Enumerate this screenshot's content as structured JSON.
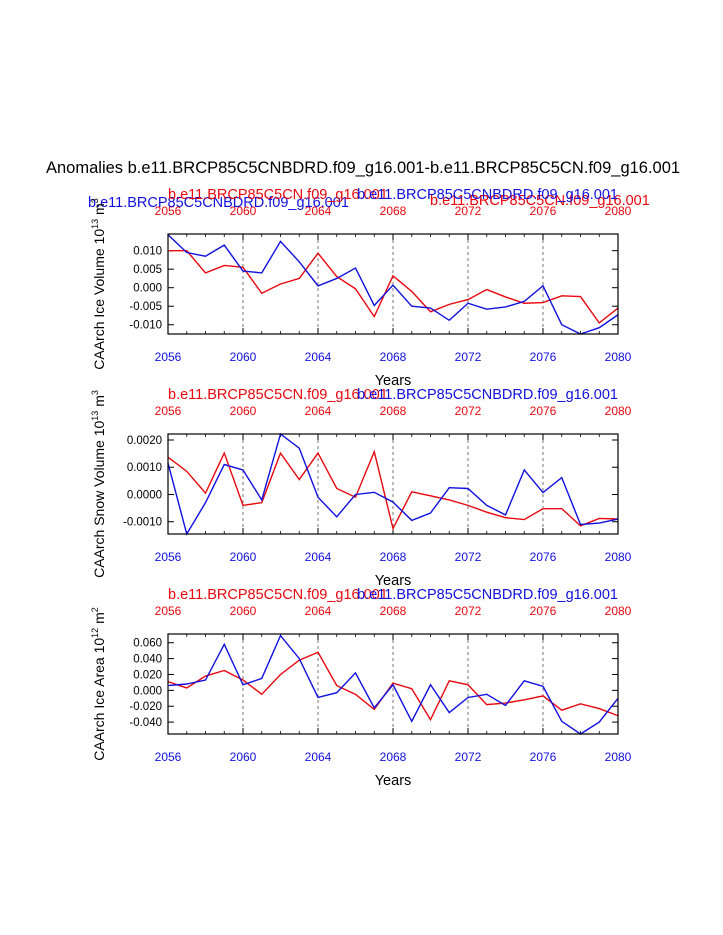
{
  "figure": {
    "title": "Anomalies b.e11.BRCP85C5CNBDRD.f09_g16.001-b.e11.BRCP85C5CN.f09_g16.001"
  },
  "colors": {
    "series_a": "#e8070e",
    "series_b": "#1010e0",
    "axis": "#000000"
  },
  "chart_data": [
    {
      "type": "line",
      "title_left": "b.e11.BRCP85C5CNBDRD.f09_g16.001",
      "title_center": "b.e11.BRCP85C5CN.f09_g16.001-b.e11.BRCP85C5CNBDRD.f09_g16.001",
      "title_right": "b.e11.BRCP85C5CN.f09_g16.001",
      "xlabel": "Years",
      "ylabel": "CAArch Ice Volume 10^13 m^3",
      "ylim": [
        -0.0125,
        0.0145
      ],
      "yticks": [
        -0.01,
        -0.005,
        0.0,
        0.005,
        0.01
      ],
      "ytick_labels": [
        "-0.010",
        "-0.005",
        "0.000",
        "0.005",
        "0.010"
      ],
      "xlim": [
        2056,
        2080
      ],
      "xticks": [
        2056,
        2060,
        2064,
        2068,
        2072,
        2076,
        2080
      ],
      "xtick_labels": [
        "2056",
        "2060",
        "2064",
        "2068",
        "2072",
        "2076",
        "2080"
      ],
      "grid_x": [
        2060,
        2064,
        2068,
        2072,
        2076
      ],
      "x": [
        2056,
        2057,
        2058,
        2059,
        2060,
        2061,
        2062,
        2063,
        2064,
        2065,
        2066,
        2067,
        2068,
        2069,
        2070,
        2071,
        2072,
        2073,
        2074,
        2075,
        2076,
        2077,
        2078,
        2079,
        2080
      ],
      "series": [
        {
          "name": "b.e11.BRCP85C5CN.f09_g16.001",
          "color_key": "series_a",
          "values": [
            0.01,
            0.01,
            0.004,
            0.006,
            0.0055,
            -0.0015,
            0.001,
            0.0025,
            0.0093,
            0.003,
            -0.0003,
            -0.0078,
            0.0032,
            -0.001,
            -0.0065,
            -0.0045,
            -0.0032,
            -0.0005,
            -0.0025,
            -0.0042,
            -0.004,
            -0.0022,
            -0.0024,
            -0.0095,
            -0.0055
          ]
        },
        {
          "name": "b.e11.BRCP85C5CNBDRD.f09_g16.001",
          "color_key": "series_b",
          "values": [
            0.0143,
            0.0095,
            0.0085,
            0.0115,
            0.0045,
            0.004,
            0.0125,
            0.007,
            0.0005,
            0.0025,
            0.0053,
            -0.0048,
            0.0007,
            -0.005,
            -0.0055,
            -0.0088,
            -0.0042,
            -0.0058,
            -0.0052,
            -0.0037,
            0.0005,
            -0.01,
            -0.0125,
            -0.0108,
            -0.0073
          ]
        }
      ]
    },
    {
      "type": "line",
      "title_left": "",
      "title_center": "b.e11.BRCP85C5CN.f09_g16.001-b.e11.BRCP85C5CNBDRD.f09_g16.001",
      "title_right": "",
      "xlabel": "Years",
      "ylabel": "CAArch Snow Volume 10^13 m^3",
      "ylim": [
        -0.00145,
        0.00222
      ],
      "yticks": [
        -0.001,
        0.0,
        0.001,
        0.002
      ],
      "ytick_labels": [
        "-0.0010",
        "0.0000",
        "0.0010",
        "0.0020"
      ],
      "xlim": [
        2056,
        2080
      ],
      "xticks": [
        2056,
        2060,
        2064,
        2068,
        2072,
        2076,
        2080
      ],
      "xtick_labels": [
        "2056",
        "2060",
        "2064",
        "2068",
        "2072",
        "2076",
        "2080"
      ],
      "grid_x": [
        2060,
        2064,
        2068,
        2072,
        2076
      ],
      "x": [
        2056,
        2057,
        2058,
        2059,
        2060,
        2061,
        2062,
        2063,
        2064,
        2065,
        2066,
        2067,
        2068,
        2069,
        2070,
        2071,
        2072,
        2073,
        2074,
        2075,
        2076,
        2077,
        2078,
        2079,
        2080
      ],
      "series": [
        {
          "name": "b.e11.BRCP85C5CN.f09_g16.001",
          "color_key": "series_a",
          "values": [
            0.00137,
            0.00085,
            5e-05,
            0.00152,
            -0.0004,
            -0.0003,
            0.00152,
            0.00055,
            0.00152,
            0.00022,
            -0.0001,
            0.00157,
            -0.00125,
            0.0001,
            -5e-05,
            -0.0002,
            -0.0004,
            -0.00065,
            -0.00085,
            -0.00092,
            -0.00052,
            -0.00052,
            -0.00115,
            -0.00088,
            -0.0009
          ]
        },
        {
          "name": "b.e11.BRCP85C5CNBDRD.f09_g16.001",
          "color_key": "series_b",
          "values": [
            0.00115,
            -0.00145,
            -0.0003,
            0.0011,
            0.0009,
            -0.0002,
            0.00222,
            0.0017,
            -0.0001,
            -0.00082,
            0.0,
            8e-05,
            -0.00028,
            -0.00095,
            -0.00068,
            0.00025,
            0.00022,
            -0.0004,
            -0.00075,
            0.0009,
            7e-05,
            0.00062,
            -0.0011,
            -0.00105,
            -0.0009
          ]
        }
      ]
    },
    {
      "type": "line",
      "title_left": "",
      "title_center": "b.e11.BRCP85C5CN.f09_g16.001-b.e11.BRCP85C5CNBDRD.f09_g16.001",
      "title_right": "",
      "xlabel": "Years",
      "ylabel": "CAArch Ice Area 10^12 m^2",
      "ylim": [
        -0.055,
        0.071
      ],
      "yticks": [
        -0.04,
        -0.02,
        0.0,
        0.02,
        0.04,
        0.06
      ],
      "ytick_labels": [
        "-0.040",
        "-0.020",
        "0.000",
        "0.020",
        "0.040",
        "0.060"
      ],
      "xlim": [
        2056,
        2080
      ],
      "xticks": [
        2056,
        2060,
        2064,
        2068,
        2072,
        2076,
        2080
      ],
      "xtick_labels": [
        "2056",
        "2060",
        "2064",
        "2068",
        "2072",
        "2076",
        "2080"
      ],
      "grid_x": [
        2060,
        2064,
        2068,
        2072,
        2076
      ],
      "x": [
        2056,
        2057,
        2058,
        2059,
        2060,
        2061,
        2062,
        2063,
        2064,
        2065,
        2066,
        2067,
        2068,
        2069,
        2070,
        2071,
        2072,
        2073,
        2074,
        2075,
        2076,
        2077,
        2078,
        2079,
        2080
      ],
      "series": [
        {
          "name": "b.e11.BRCP85C5CN.f09_g16.001",
          "color_key": "series_a",
          "values": [
            0.011,
            0.003,
            0.018,
            0.025,
            0.013,
            -0.005,
            0.02,
            0.038,
            0.048,
            0.006,
            -0.005,
            -0.024,
            0.009,
            0.002,
            -0.037,
            0.012,
            0.007,
            -0.018,
            -0.016,
            -0.012,
            -0.007,
            -0.025,
            -0.017,
            -0.023,
            -0.032
          ]
        },
        {
          "name": "b.e11.BRCP85C5CNBDRD.f09_g16.001",
          "color_key": "series_b",
          "values": [
            0.006,
            0.008,
            0.013,
            0.058,
            0.007,
            0.015,
            0.069,
            0.04,
            -0.009,
            -0.003,
            0.022,
            -0.022,
            0.007,
            -0.039,
            0.007,
            -0.028,
            -0.009,
            -0.005,
            -0.019,
            0.012,
            0.005,
            -0.039,
            -0.055,
            -0.04,
            -0.01
          ]
        }
      ]
    }
  ]
}
